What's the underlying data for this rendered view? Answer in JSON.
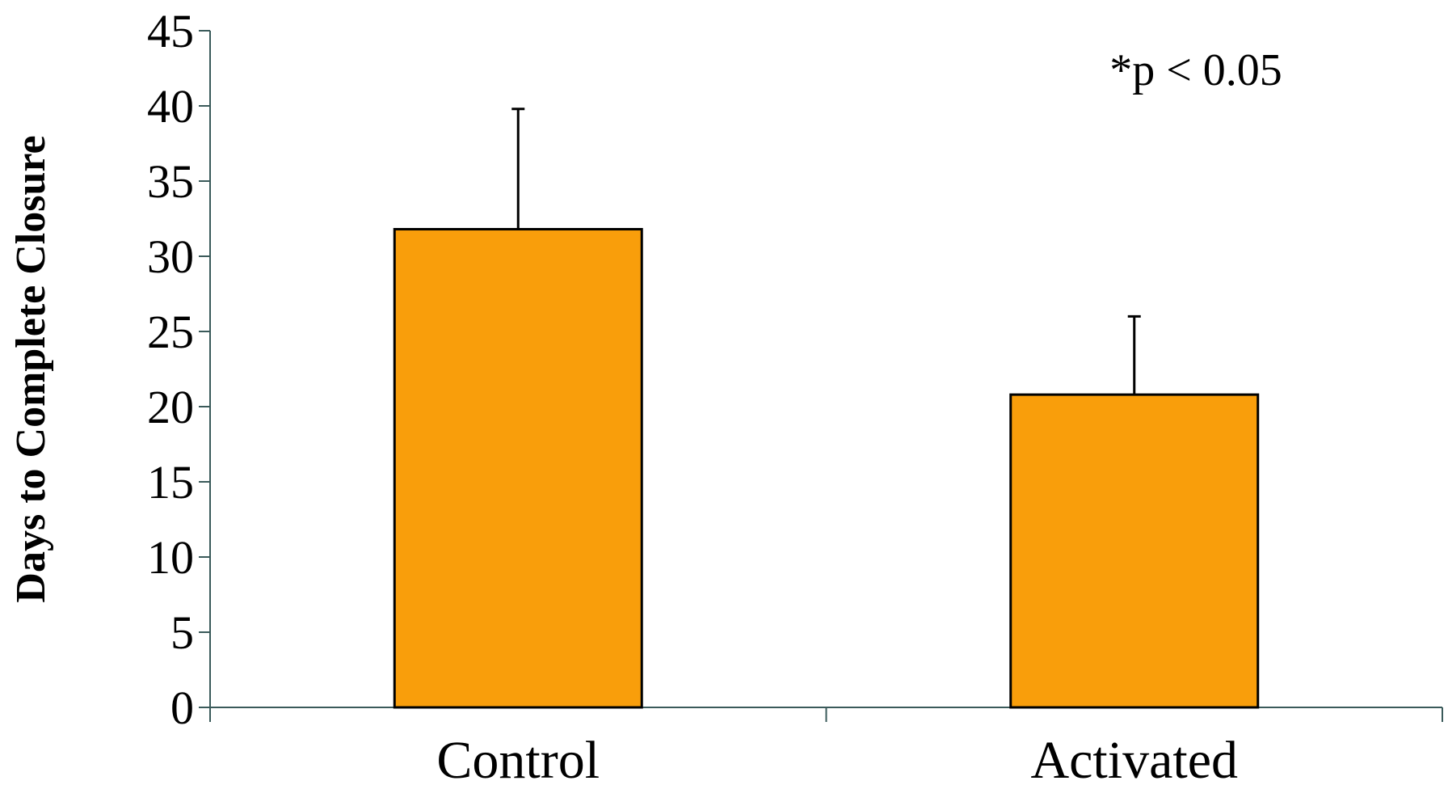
{
  "chart_data": {
    "type": "bar",
    "categories": [
      "Control",
      "Activated"
    ],
    "values": [
      31.8,
      20.8
    ],
    "error_upper": [
      39.8,
      26.0
    ],
    "ylabel": "Days to Complete Closure",
    "xlabel": "",
    "ylim": [
      0,
      45
    ],
    "yticks": [
      0,
      5,
      10,
      15,
      20,
      25,
      30,
      35,
      40,
      45
    ],
    "annotation": "*p < 0.05",
    "grid": false,
    "bar_color": "#F99E0B",
    "bar_edge_color": "#000000",
    "axis_color": "#3a5a5a"
  }
}
